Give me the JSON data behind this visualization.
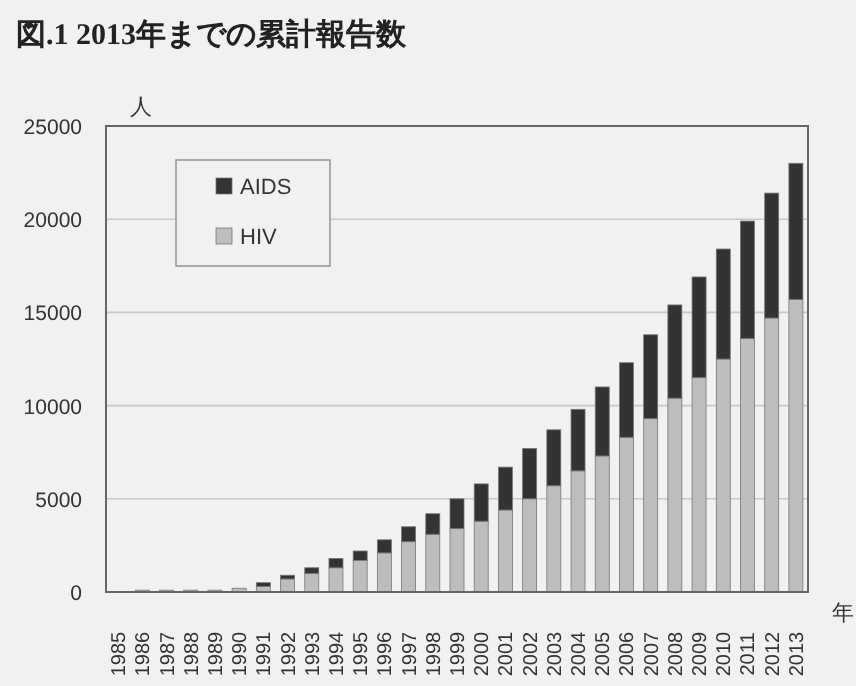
{
  "chart_data": {
    "type": "bar",
    "title": "図.1 2013年までの累計報告数",
    "ylabel": "人",
    "xlabel": "年",
    "categories": [
      "1985",
      "1986",
      "1987",
      "1988",
      "1989",
      "1990",
      "1991",
      "1992",
      "1993",
      "1994",
      "1995",
      "1996",
      "1997",
      "1998",
      "1999",
      "2000",
      "2001",
      "2002",
      "2003",
      "2004",
      "2005",
      "2006",
      "2007",
      "2008",
      "2009",
      "2010",
      "2011",
      "2012",
      "2013"
    ],
    "stacked": true,
    "legend": "top left",
    "grid": "y",
    "ylim": [
      0,
      25000
    ],
    "yticks": [
      0,
      5000,
      10000,
      15000,
      20000,
      25000
    ],
    "series": [
      {
        "name": "HIV",
        "color": "#bdbdbd",
        "values": [
          null,
          100,
          100,
          100,
          100,
          200,
          300,
          700,
          1000,
          1300,
          1700,
          2100,
          2700,
          3100,
          3400,
          3800,
          4400,
          5000,
          5700,
          6500,
          7300,
          8300,
          9300,
          10400,
          11500,
          12500,
          13600,
          14700,
          15700
        ]
      },
      {
        "name": "AIDS",
        "color": "#333333",
        "values": [
          null,
          null,
          null,
          null,
          null,
          null,
          200,
          200,
          300,
          500,
          500,
          700,
          800,
          1100,
          1600,
          2000,
          2300,
          2700,
          3000,
          3300,
          3700,
          4000,
          4500,
          5000,
          5400,
          5900,
          6300,
          6700,
          7300
        ]
      }
    ]
  }
}
